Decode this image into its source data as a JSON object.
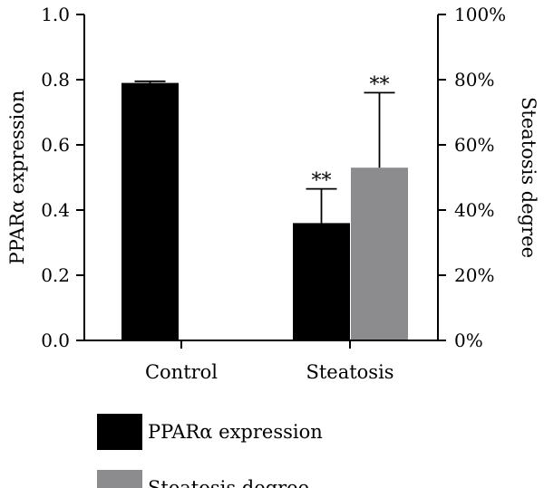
{
  "chart_data": {
    "type": "bar",
    "categories": [
      "Control",
      "Steatosis"
    ],
    "series": [
      {
        "name": "PPARα expression",
        "axis": "left",
        "color": "#000000",
        "values": [
          0.79,
          0.36
        ],
        "errors": [
          0.005,
          0.105
        ],
        "significance": [
          "",
          "**"
        ]
      },
      {
        "name": "Steatosis degree",
        "axis": "right",
        "color": "#8c8c8e",
        "values": [
          null,
          53
        ],
        "errors": [
          null,
          23
        ],
        "significance": [
          "",
          "**"
        ]
      }
    ],
    "ylabel": "PPARα expression",
    "ylabel_right": "Steatosis degree",
    "ylim": [
      0,
      1.0
    ],
    "ylim_right": [
      0,
      100
    ],
    "yticks": [
      "0.0",
      "0.2",
      "0.4",
      "0.6",
      "0.8",
      "1.0"
    ],
    "yticks_right": [
      "0%",
      "20%",
      "40%",
      "60%",
      "80%",
      "100%"
    ],
    "legend_position": "bottom-left"
  }
}
